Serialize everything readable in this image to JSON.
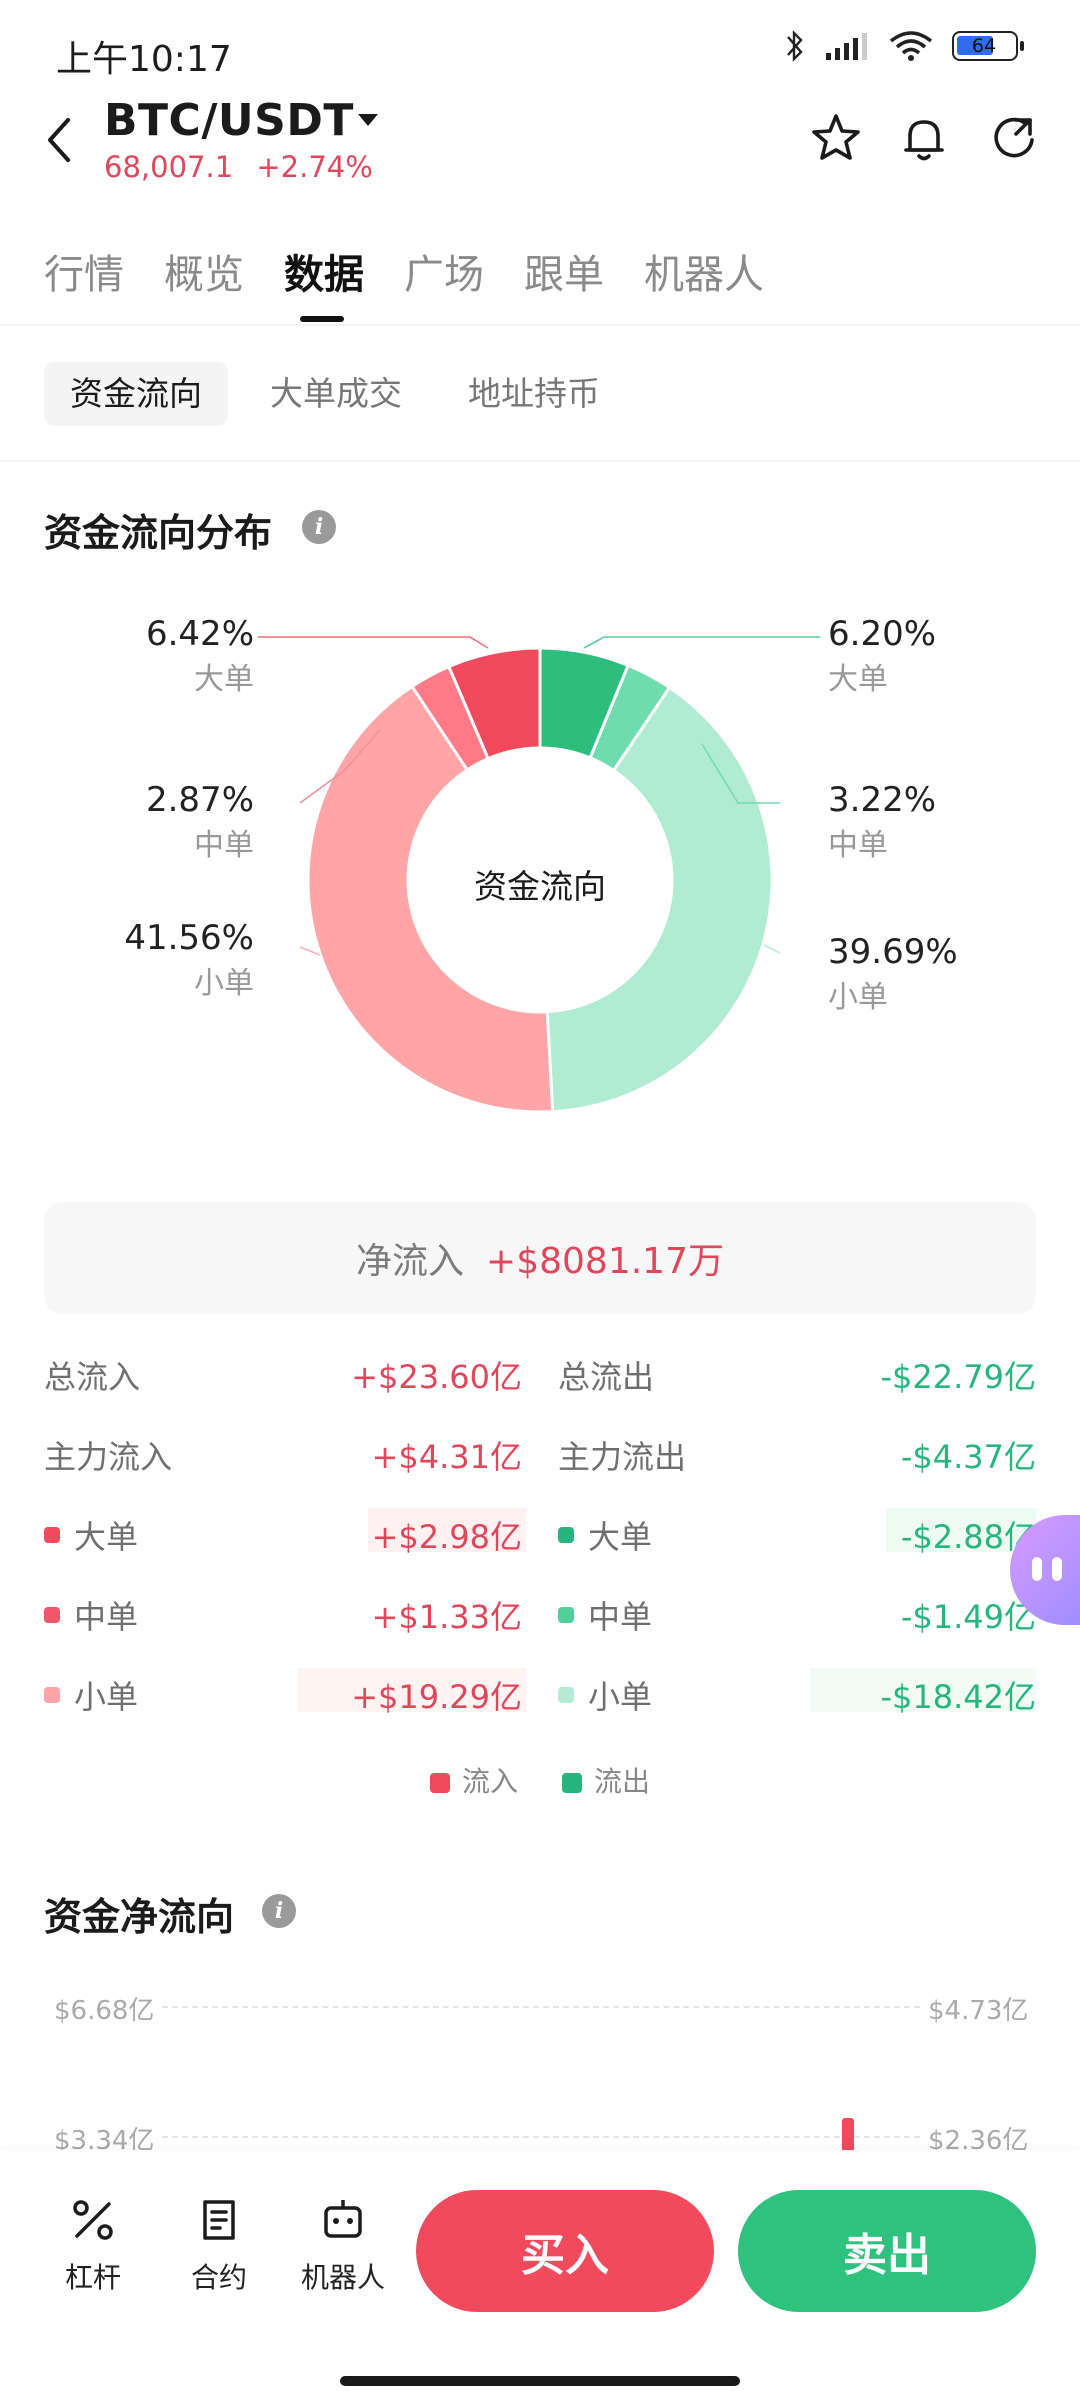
{
  "status": {
    "time": "上午10:17",
    "battery": "64",
    "wifi_sub": "6"
  },
  "header": {
    "pair": "BTC/USDT",
    "price": "68,007.1",
    "change": "+2.74%"
  },
  "tabs": [
    "行情",
    "概览",
    "数据",
    "广场",
    "跟单",
    "机器人"
  ],
  "active_tab": "数据",
  "subtabs": [
    "资金流向",
    "大单成交",
    "地址持币"
  ],
  "active_subtab": "资金流向",
  "distribution": {
    "title": "资金流向分布",
    "center_label": "资金流向",
    "inflow": {
      "large": {
        "pct": "6.42%",
        "label": "大单"
      },
      "medium": {
        "pct": "2.87%",
        "label": "中单"
      },
      "small": {
        "pct": "41.56%",
        "label": "小单"
      }
    },
    "outflow": {
      "large": {
        "pct": "6.20%",
        "label": "大单"
      },
      "medium": {
        "pct": "3.22%",
        "label": "中单"
      },
      "small": {
        "pct": "39.69%",
        "label": "小单"
      }
    },
    "slices": [
      {
        "name": "outflow-large",
        "value": 6.2,
        "color": "#2dbe7e"
      },
      {
        "name": "outflow-medium",
        "value": 3.22,
        "color": "#6fdcae"
      },
      {
        "name": "outflow-small",
        "value": 39.69,
        "color": "#afecd1"
      },
      {
        "name": "inflow-small",
        "value": 41.56,
        "color": "#ffa4a7"
      },
      {
        "name": "inflow-medium",
        "value": 2.87,
        "color": "#ff7a86"
      },
      {
        "name": "inflow-large",
        "value": 6.42,
        "color": "#f24a5d"
      }
    ]
  },
  "net": {
    "label": "净流入",
    "value": "+$8081.17万"
  },
  "flows": {
    "total_in_label": "总流入",
    "total_in": "+$23.60亿",
    "total_out_label": "总流出",
    "total_out": "-$22.79亿",
    "main_in_label": "主力流入",
    "main_in": "+$4.31亿",
    "main_out_label": "主力流出",
    "main_out": "-$4.37亿",
    "large_label": "大单",
    "large_in": "+$2.98亿",
    "large_out": "-$2.88亿",
    "medium_label": "中单",
    "medium_in": "+$1.33亿",
    "medium_out": "-$1.49亿",
    "small_label": "小单",
    "small_in": "+$19.29亿",
    "small_out": "-$18.42亿"
  },
  "legend": {
    "inflow": "流入",
    "outflow": "流出"
  },
  "net_flow": {
    "title": "资金净流向",
    "left_axis": [
      "$6.68亿",
      "$3.34亿"
    ],
    "right_axis": [
      "$4.73亿",
      "$2.36亿"
    ]
  },
  "bottom": {
    "leverage": "杠杆",
    "contract": "合约",
    "robot": "机器人",
    "buy": "买入",
    "sell": "卖出"
  },
  "colors": {
    "red": "#e0475b",
    "green": "#26b67d",
    "buy": "#f24a5d",
    "sell": "#2ec27e"
  }
}
